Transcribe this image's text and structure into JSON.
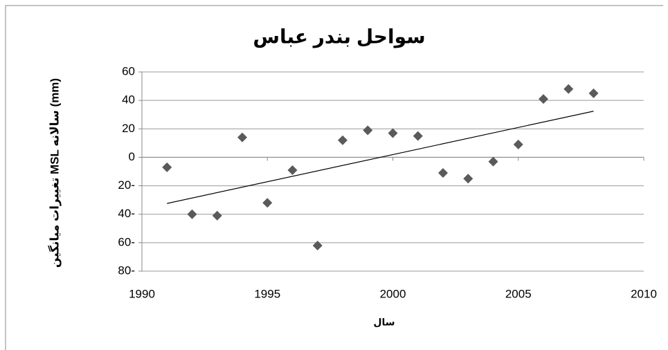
{
  "chart_data": {
    "type": "scatter",
    "title": "سواحل بندر عباس",
    "x_label": "سال",
    "y_label": "تغییرات میانگین MSL سالانه (mm)",
    "x": [
      1991,
      1992,
      1993,
      1994,
      1995,
      1996,
      1997,
      1998,
      1999,
      2000,
      2001,
      2002,
      2003,
      2004,
      2005,
      2006,
      2007,
      2008
    ],
    "series": [
      {
        "name": "MSL",
        "color": "#5a5a5a",
        "values": [
          -7,
          -40,
          -41,
          14,
          -32,
          -9,
          -62,
          12,
          19,
          17,
          15,
          -11,
          -15,
          -3,
          9,
          41,
          48,
          45
        ]
      }
    ],
    "trendline": "linear",
    "trendline_color": "#000000",
    "xlim": [
      1990,
      2010
    ],
    "xticks": [
      1990,
      1995,
      2000,
      2005,
      2010
    ],
    "ylim": [
      -80,
      60
    ],
    "yticks": [
      60,
      40,
      20,
      0,
      {
        "value": -20,
        "label": "20-"
      },
      {
        "value": -40,
        "label": "40-"
      },
      {
        "value": -60,
        "label": "60-"
      },
      {
        "value": -80,
        "label": "80-"
      }
    ],
    "grid": true
  }
}
